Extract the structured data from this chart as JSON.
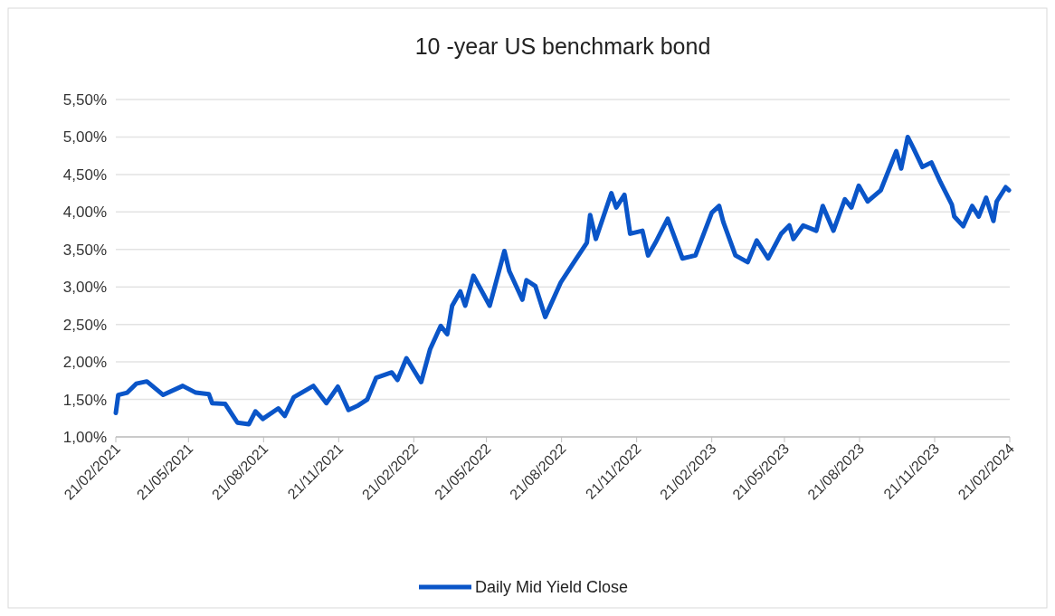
{
  "chart_data": {
    "type": "line",
    "title": "10 -year US benchmark bond",
    "x": [
      "2021-02-21",
      "2021-02-24",
      "2021-03-07",
      "2021-03-18",
      "2021-03-31",
      "2021-04-20",
      "2021-05-14",
      "2021-05-30",
      "2021-06-15",
      "2021-06-19",
      "2021-07-05",
      "2021-07-20",
      "2021-08-03",
      "2021-08-11",
      "2021-08-20",
      "2021-09-08",
      "2021-09-16",
      "2021-09-27",
      "2021-10-21",
      "2021-11-06",
      "2021-11-20",
      "2021-12-03",
      "2021-12-15",
      "2021-12-26",
      "2022-01-06",
      "2022-01-25",
      "2022-02-01",
      "2022-02-12",
      "2022-03-02",
      "2022-03-13",
      "2022-03-26",
      "2022-04-03",
      "2022-04-09",
      "2022-04-19",
      "2022-04-25",
      "2022-05-05",
      "2022-05-25",
      "2022-06-12",
      "2022-06-18",
      "2022-07-04",
      "2022-07-09",
      "2022-07-20",
      "2022-08-01",
      "2022-08-20",
      "2022-09-07",
      "2022-09-21",
      "2022-09-25",
      "2022-10-02",
      "2022-10-21",
      "2022-10-27",
      "2022-11-06",
      "2022-11-13",
      "2022-11-28",
      "2022-12-05",
      "2022-12-14",
      "2022-12-29",
      "2023-01-16",
      "2023-02-01",
      "2023-02-21",
      "2023-03-02",
      "2023-03-07",
      "2023-03-22",
      "2023-04-06",
      "2023-04-17",
      "2023-05-01",
      "2023-05-17",
      "2023-05-27",
      "2023-06-01",
      "2023-06-13",
      "2023-06-29",
      "2023-07-07",
      "2023-07-20",
      "2023-08-03",
      "2023-08-11",
      "2023-08-20",
      "2023-08-31",
      "2023-09-16",
      "2023-10-05",
      "2023-10-11",
      "2023-10-19",
      "2023-10-26",
      "2023-11-06",
      "2023-11-17",
      "2023-11-28",
      "2023-12-12",
      "2023-12-15",
      "2023-12-26",
      "2024-01-06",
      "2024-01-14",
      "2024-01-23",
      "2024-02-01",
      "2024-02-05",
      "2024-02-16",
      "2024-02-20"
    ],
    "series": [
      {
        "name": "Daily Mid Yield Close",
        "color": "#0a55c8",
        "values": [
          1.32,
          1.56,
          1.59,
          1.71,
          1.74,
          1.56,
          1.68,
          1.59,
          1.57,
          1.45,
          1.44,
          1.19,
          1.17,
          1.34,
          1.24,
          1.38,
          1.28,
          1.53,
          1.68,
          1.45,
          1.67,
          1.36,
          1.42,
          1.5,
          1.79,
          1.86,
          1.76,
          2.05,
          1.73,
          2.17,
          2.48,
          2.37,
          2.75,
          2.94,
          2.75,
          3.15,
          2.75,
          3.48,
          3.21,
          2.83,
          3.09,
          3.01,
          2.6,
          3.06,
          3.36,
          3.59,
          3.96,
          3.64,
          4.25,
          4.06,
          4.23,
          3.71,
          3.75,
          3.42,
          3.59,
          3.91,
          3.38,
          3.42,
          3.99,
          4.08,
          3.87,
          3.42,
          3.33,
          3.62,
          3.38,
          3.71,
          3.82,
          3.64,
          3.82,
          3.75,
          4.08,
          3.75,
          4.17,
          4.06,
          4.35,
          4.14,
          4.29,
          4.81,
          4.58,
          5.0,
          4.85,
          4.6,
          4.66,
          4.4,
          4.1,
          3.94,
          3.81,
          4.08,
          3.94,
          4.19,
          3.88,
          4.14,
          4.33,
          4.29
        ]
      }
    ],
    "xlim": [
      "2021-02-21",
      "2024-02-21"
    ],
    "xticks": [
      {
        "value": "2021-02-21",
        "label": "21/02/2021"
      },
      {
        "value": "2021-05-21",
        "label": "21/05/2021"
      },
      {
        "value": "2021-08-21",
        "label": "21/08/2021"
      },
      {
        "value": "2021-11-21",
        "label": "21/11/2021"
      },
      {
        "value": "2022-02-21",
        "label": "21/02/2022"
      },
      {
        "value": "2022-05-21",
        "label": "21/05/2022"
      },
      {
        "value": "2022-08-21",
        "label": "21/08/2022"
      },
      {
        "value": "2022-11-21",
        "label": "21/11/2022"
      },
      {
        "value": "2023-02-21",
        "label": "21/02/2023"
      },
      {
        "value": "2023-05-21",
        "label": "21/05/2023"
      },
      {
        "value": "2023-08-21",
        "label": "21/08/2023"
      },
      {
        "value": "2023-11-21",
        "label": "21/11/2023"
      },
      {
        "value": "2024-02-21",
        "label": "21/02/2024"
      }
    ],
    "ylim": [
      1,
      5.5
    ],
    "yticks": [
      {
        "value": 1,
        "label": "1,00%"
      },
      {
        "value": 1.5,
        "label": "1,50%"
      },
      {
        "value": 2,
        "label": "2,00%"
      },
      {
        "value": 2.5,
        "label": "2,50%"
      },
      {
        "value": 3,
        "label": "3,00%"
      },
      {
        "value": 3.5,
        "label": "3,50%"
      },
      {
        "value": 4,
        "label": "4,00%"
      },
      {
        "value": 4.5,
        "label": "4,50%"
      },
      {
        "value": 5,
        "label": "5,00%"
      },
      {
        "value": 5.5,
        "label": "5,50%"
      }
    ],
    "grid": "y",
    "legend": "bottom",
    "line_style": "solid",
    "marker": "none"
  }
}
